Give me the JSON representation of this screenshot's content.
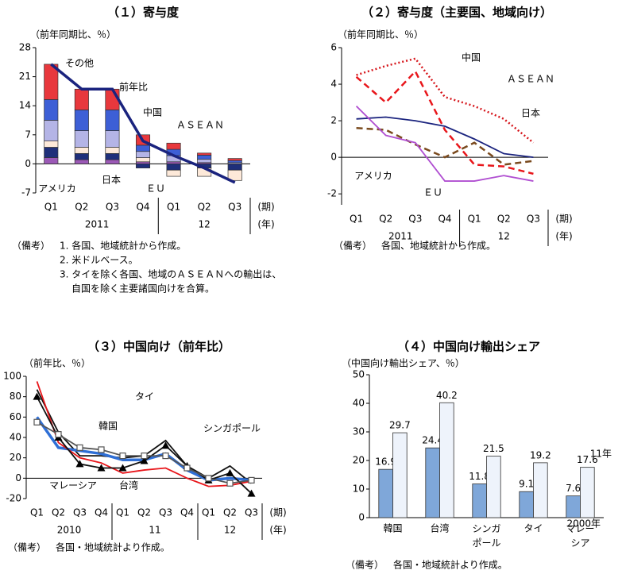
{
  "chart_data": [
    {
      "type": "bar",
      "stacked": true,
      "title": "（１）寄与度",
      "y_label": "（前年同期比、％）",
      "categories": [
        "Q1",
        "Q2",
        "Q3",
        "Q4",
        "Q1",
        "Q2",
        "Q3"
      ],
      "category_groups": [
        "2011",
        null,
        null,
        null,
        "12",
        null,
        null
      ],
      "x_unit": "(期)",
      "x_group_unit": "(年)",
      "ylim": [
        -7,
        28
      ],
      "yticks": [
        -7,
        0,
        7,
        14,
        21,
        28
      ],
      "series": [
        {
          "name": "アメリカ",
          "color": "#9b59b6",
          "values": [
            1.5,
            1,
            1,
            0.5,
            0.5,
            0.3,
            0
          ]
        },
        {
          "name": "日本",
          "color": "#1f2f7a",
          "values": [
            2.5,
            1.5,
            1.5,
            -1,
            -1.5,
            -1,
            -1.5
          ]
        },
        {
          "name": "ＥＵ",
          "color": "#fde9d9",
          "values": [
            1.5,
            1.5,
            1.5,
            1,
            -1.5,
            -2,
            -2.5
          ]
        },
        {
          "name": "ＡＳＥＡＮ",
          "color": "#b4b4e6",
          "values": [
            5,
            4,
            4,
            1.5,
            1.5,
            0.8,
            0.3
          ]
        },
        {
          "name": "中国",
          "color": "#3d5fd6",
          "values": [
            5,
            5,
            5,
            1.5,
            1.5,
            1,
            0.5
          ]
        },
        {
          "name": "その他",
          "color": "#e8383d",
          "values": [
            8.5,
            5,
            5,
            2.5,
            1.5,
            0.5,
            0.5
          ]
        },
        {
          "name": "前年比",
          "type": "line",
          "color": "#1a237e",
          "values": [
            24,
            18,
            18,
            5.5,
            2,
            -1,
            -4.5
          ]
        }
      ],
      "notes": [
        "（備考）",
        "1. 各国、地域統計から作成。",
        "2. 米ドルベース。",
        "3. タイを除く各国、地域のＡＳＥＡＮへの輸出は、",
        "自国を除く主要諸国向けを合算。"
      ]
    },
    {
      "type": "line",
      "title": "（２）寄与度（主要国、地域向け）",
      "y_label": "（前年同期比、％）",
      "categories": [
        "Q1",
        "Q2",
        "Q3",
        "Q4",
        "Q1",
        "Q2",
        "Q3"
      ],
      "category_groups": [
        "2011",
        null,
        null,
        null,
        "12",
        null,
        null
      ],
      "x_unit": "(期)",
      "x_group_unit": "(年)",
      "ylim": [
        -2.6,
        6
      ],
      "yticks": [
        -2,
        0,
        2,
        4,
        6
      ],
      "series": [
        {
          "name": "中国",
          "color": "#e8161b",
          "style": "dashed",
          "values": [
            4.4,
            3.0,
            4.7,
            1.5,
            -0.4,
            -0.5,
            -0.9
          ]
        },
        {
          "name": "ＡＳＥＡＮ",
          "color": "#d6141a",
          "style": "dotted",
          "values": [
            4.5,
            5.0,
            5.4,
            3.3,
            2.8,
            2.1,
            0.8
          ]
        },
        {
          "name": "日本",
          "color": "#1a237e",
          "style": "solid",
          "values": [
            2.1,
            2.2,
            2.0,
            1.7,
            1.0,
            0.2,
            0.0
          ]
        },
        {
          "name": "アメリカ",
          "color": "#7a4a1e",
          "style": "dashed",
          "values": [
            1.6,
            1.5,
            0.7,
            0.0,
            0.8,
            -0.4,
            -0.2
          ]
        },
        {
          "name": "ＥＵ",
          "color": "#b04fd1",
          "style": "solid",
          "values": [
            2.8,
            1.2,
            0.8,
            -1.3,
            -1.3,
            -1.0,
            -1.3
          ]
        }
      ],
      "notes": [
        "（備考）",
        "各国、地域統計から作成。"
      ]
    },
    {
      "type": "line",
      "title": "（３）中国向け（前年比）",
      "y_label": "（前年比、％）",
      "categories": [
        "Q1",
        "Q2",
        "Q3",
        "Q4",
        "Q1",
        "Q2",
        "Q3",
        "Q4",
        "Q1",
        "Q2",
        "Q3"
      ],
      "category_groups": [
        "2010",
        null,
        null,
        null,
        "11",
        null,
        null,
        null,
        "12",
        null,
        null
      ],
      "x_unit": "(期)",
      "x_group_unit": "(年)",
      "ylim": [
        -20,
        100
      ],
      "yticks": [
        -20,
        0,
        20,
        40,
        60,
        80,
        100
      ],
      "series": [
        {
          "name": "タイ",
          "color": "#111111",
          "style": "solid",
          "values": [
            87,
            45,
            22,
            22,
            20,
            22,
            37,
            12,
            0,
            12,
            -5
          ]
        },
        {
          "name": "韓国",
          "color": "#2f6fd6",
          "style": "thick",
          "values": [
            60,
            30,
            27,
            24,
            18,
            18,
            24,
            8,
            -2,
            0,
            -2
          ]
        },
        {
          "name": "台湾",
          "color": "#e8161b",
          "style": "solid",
          "values": [
            95,
            35,
            20,
            15,
            5,
            8,
            10,
            0,
            -8,
            -7,
            -3
          ]
        },
        {
          "name": "マレーシア",
          "color": "#111111",
          "style": "solid",
          "marker": "triangle",
          "values": [
            80,
            40,
            14,
            10,
            10,
            17,
            32,
            12,
            -2,
            5,
            -15
          ]
        },
        {
          "name": "シンガポール",
          "color": "#555555",
          "style": "solid",
          "marker": "square",
          "values": [
            55,
            43,
            30,
            28,
            22,
            22,
            22,
            10,
            0,
            -5,
            -2
          ]
        }
      ],
      "notes": [
        "（備考）",
        "各国・地域統計より作成。"
      ]
    },
    {
      "type": "bar",
      "stacked": false,
      "title": "（４）中国向け輸出シェア",
      "y_label": "（中国向け輸出シェア、％）",
      "categories": [
        "韓国",
        "台湾",
        "シンガ\nポール",
        "タイ",
        "マレー\nシア"
      ],
      "ylim": [
        0,
        50
      ],
      "yticks": [
        0,
        10,
        20,
        30,
        40,
        50
      ],
      "series": [
        {
          "name": "2000年",
          "color": "#7fa7d9",
          "values": [
            16.9,
            24.4,
            11.8,
            9.1,
            7.6
          ]
        },
        {
          "name": "11年",
          "color": "#eef3fb",
          "values": [
            29.7,
            40.2,
            21.5,
            19.2,
            17.6
          ]
        }
      ],
      "notes": [
        "（備考）",
        "各国・地域統計より作成。"
      ]
    }
  ]
}
